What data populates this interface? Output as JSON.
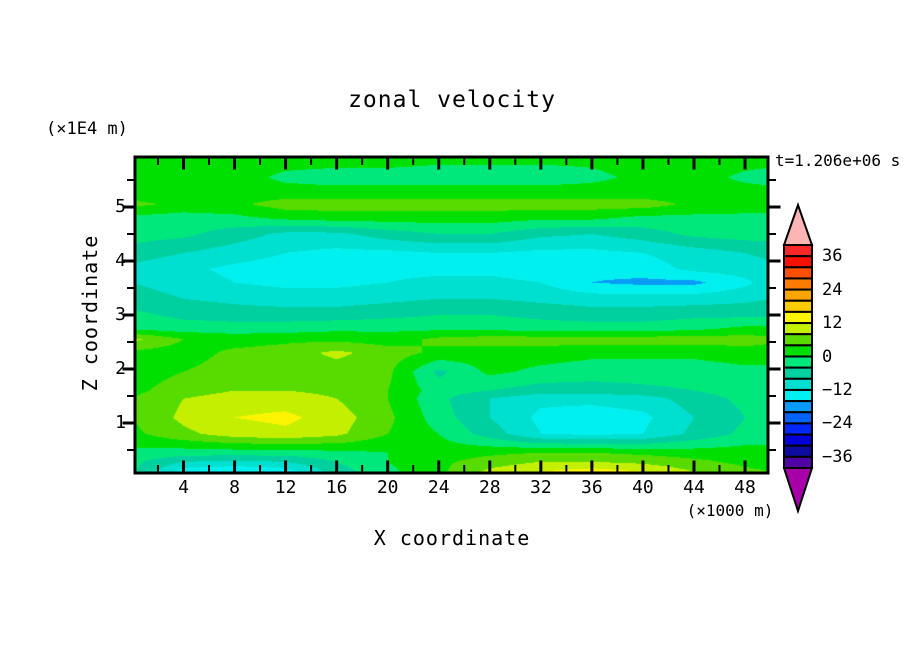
{
  "window": {
    "background": "#ffffff",
    "text_color": "#000000"
  },
  "chart_data": {
    "type": "filled_contour",
    "title": "zonal velocity",
    "xlabel": "X coordinate",
    "ylabel": "Z coordinate",
    "x_unit_note": "(×1000 m)",
    "y_unit_note": "(×1E4 m)",
    "time_note": "t=1.206e+06 s",
    "xlim": [
      0.2,
      49.8
    ],
    "ylim": [
      0.074,
      5.926
    ],
    "x_major_ticks": [
      4,
      8,
      12,
      16,
      20,
      24,
      28,
      32,
      36,
      40,
      44,
      48
    ],
    "x_minor_ticks": [
      2,
      6,
      10,
      14,
      18,
      22,
      26,
      30,
      34,
      38,
      42,
      46
    ],
    "y_major_ticks": [
      5,
      4,
      3,
      2,
      1
    ],
    "y_minor_ticks": [
      0.5,
      1.5,
      2.5,
      3.5,
      4.5,
      5.5
    ],
    "vmax": 40,
    "vmin": -40,
    "levels_step": 4,
    "colorbar_labels": [
      36,
      24,
      12,
      0,
      -12,
      -24,
      -36
    ],
    "palette_high_to_low": [
      "#f82828",
      "#f81000",
      "#fc5000",
      "#fc7c00",
      "#fca400",
      "#fccc00",
      "#fcf400",
      "#c4f000",
      "#58dc00",
      "#00e000",
      "#00e87c",
      "#00d0a0",
      "#00e0d0",
      "#00f0f0",
      "#089cf8",
      "#0064fc",
      "#0028fc",
      "#0000d8",
      "#0c0ca0",
      "#5004a4"
    ],
    "over_color": "#fcb4b4",
    "under_color": "#a800a8",
    "grid": {
      "x": [
        0,
        4,
        8,
        12,
        16,
        20,
        24,
        28,
        32,
        36,
        40,
        44,
        48,
        50
      ],
      "z": [
        0.0,
        0.1,
        0.28,
        0.45,
        0.8,
        1.1,
        1.45,
        1.6,
        1.95,
        2.3,
        2.55,
        2.75,
        3.0,
        3.3,
        3.6,
        3.85,
        4.15,
        4.5,
        4.8,
        5.05,
        5.25,
        5.55,
        5.9
      ],
      "values": [
        [
          -3,
          -17,
          -19,
          -17,
          -7,
          -1,
          4,
          10,
          14,
          17,
          15,
          10,
          6,
          5
        ],
        [
          -3,
          -14,
          -16,
          -14,
          -6,
          -1,
          3,
          9,
          12,
          14,
          12,
          8,
          5,
          4
        ],
        [
          -3,
          -8,
          -9,
          -8,
          -4,
          0,
          3,
          6,
          8,
          8,
          7,
          5,
          3,
          2
        ],
        [
          -1,
          -2,
          -2,
          -2,
          -1,
          0,
          2,
          3,
          4,
          4,
          3,
          2,
          2,
          2
        ],
        [
          3,
          7,
          10,
          11,
          9,
          4,
          0,
          -6,
          -12,
          -13,
          -12,
          -7,
          -3,
          -3
        ],
        [
          4,
          9,
          12,
          13,
          10,
          5,
          -2,
          -8,
          -13,
          -14,
          -13,
          -8,
          -4,
          -4
        ],
        [
          4,
          8,
          10,
          10,
          8,
          4,
          -3,
          -8,
          -11,
          -11,
          -10,
          -6,
          -3,
          -3
        ],
        [
          3,
          6,
          8,
          8,
          7,
          4,
          -2,
          -4,
          -6,
          -6,
          -5,
          -4,
          -2,
          -2
        ],
        [
          2,
          4,
          6,
          6,
          6,
          5,
          -5,
          1,
          -1,
          -2,
          -2,
          -2,
          -1,
          -1
        ],
        [
          3,
          2,
          5,
          6,
          9,
          6,
          3,
          2,
          2,
          1,
          1,
          1,
          2,
          2
        ],
        [
          9,
          4,
          2,
          3,
          3,
          2,
          5,
          6,
          6,
          6,
          6,
          6,
          6,
          5
        ],
        [
          -1,
          -2,
          -2,
          -2,
          -1,
          -1,
          -1,
          -1,
          -2,
          -2,
          -2,
          -1,
          1,
          1
        ],
        [
          -3,
          -5,
          -6,
          -6,
          -6,
          -5,
          -4,
          -4,
          -5,
          -6,
          -6,
          -5,
          -5,
          -5
        ],
        [
          -6,
          -8,
          -9,
          -10,
          -10,
          -9,
          -8,
          -8,
          -9,
          -10,
          -10,
          -10,
          -9,
          -8
        ],
        [
          -8,
          -10,
          -12,
          -13,
          -13,
          -12,
          -11,
          -11,
          -12,
          -16,
          -17,
          -17,
          -13,
          -10
        ],
        [
          -9,
          -11,
          -13,
          -14,
          -14,
          -13,
          -13,
          -13,
          -14,
          -15,
          -14,
          -11,
          -10,
          -9
        ],
        [
          -6,
          -8,
          -10,
          -12,
          -13,
          -13,
          -12,
          -12,
          -13,
          -13,
          -12,
          -10,
          -8,
          -7
        ],
        [
          -2,
          -3,
          -6,
          -9,
          -9,
          -6,
          -4,
          -4,
          -7,
          -8,
          -6,
          -3,
          -2,
          -2
        ],
        [
          -1,
          -2,
          -1,
          1,
          2,
          2,
          2,
          2,
          1,
          1,
          -1,
          -1,
          -1,
          -1
        ],
        [
          5,
          3,
          3,
          6,
          6,
          6,
          6,
          6,
          6,
          6,
          6,
          3,
          2,
          2
        ],
        [
          2,
          2,
          2,
          2,
          2,
          2,
          2,
          2,
          2,
          2,
          2,
          2,
          2,
          2
        ],
        [
          3,
          3,
          2,
          -1,
          -2,
          -2,
          -2,
          -2,
          -2,
          -1,
          1,
          2,
          -1,
          -2
        ],
        [
          2,
          2,
          2,
          2,
          2,
          2,
          1,
          1,
          1,
          1,
          2,
          2,
          2,
          2
        ]
      ]
    }
  }
}
